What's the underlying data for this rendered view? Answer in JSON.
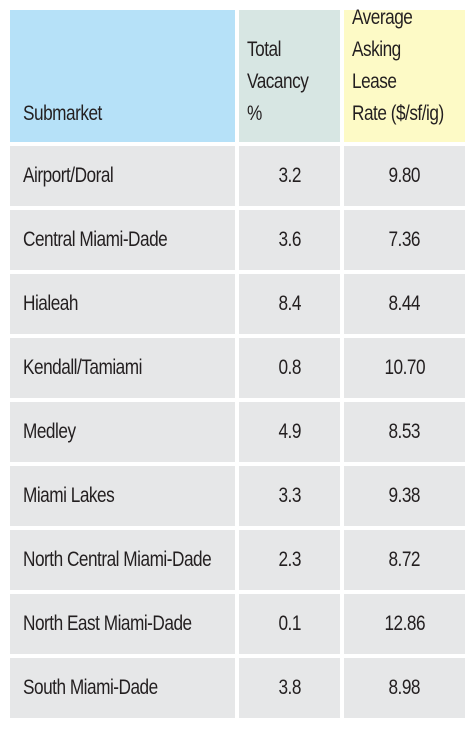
{
  "table": {
    "headers": {
      "submarket": "Submarket",
      "vacancy_line1": "Total",
      "vacancy_line2": "Vacancy %",
      "rate_line1": "Average",
      "rate_line2": "Asking Lease",
      "rate_line3": "Rate ($/sf/ig)"
    },
    "rows": [
      {
        "submarket": "Airport/Doral",
        "vacancy": "3.2",
        "rate": "9.80"
      },
      {
        "submarket": "Central Miami-Dade",
        "vacancy": "3.6",
        "rate": "7.36"
      },
      {
        "submarket": "Hialeah",
        "vacancy": "8.4",
        "rate": "8.44"
      },
      {
        "submarket": "Kendall/Tamiami",
        "vacancy": "0.8",
        "rate": "10.70"
      },
      {
        "submarket": "Medley",
        "vacancy": "4.9",
        "rate": "8.53"
      },
      {
        "submarket": "Miami Lakes",
        "vacancy": "3.3",
        "rate": "9.38"
      },
      {
        "submarket": "North Central Miami-Dade",
        "vacancy": "2.3",
        "rate": "8.72"
      },
      {
        "submarket": "North East Miami-Dade",
        "vacancy": "0.1",
        "rate": "12.86"
      },
      {
        "submarket": "South Miami-Dade",
        "vacancy": "3.8",
        "rate": "8.98"
      }
    ],
    "colors": {
      "header_submarket": "#b6e1f8",
      "header_vacancy": "#d7e6e3",
      "header_rate": "#fdfac6",
      "row_bg": "#e6e7e8"
    }
  }
}
